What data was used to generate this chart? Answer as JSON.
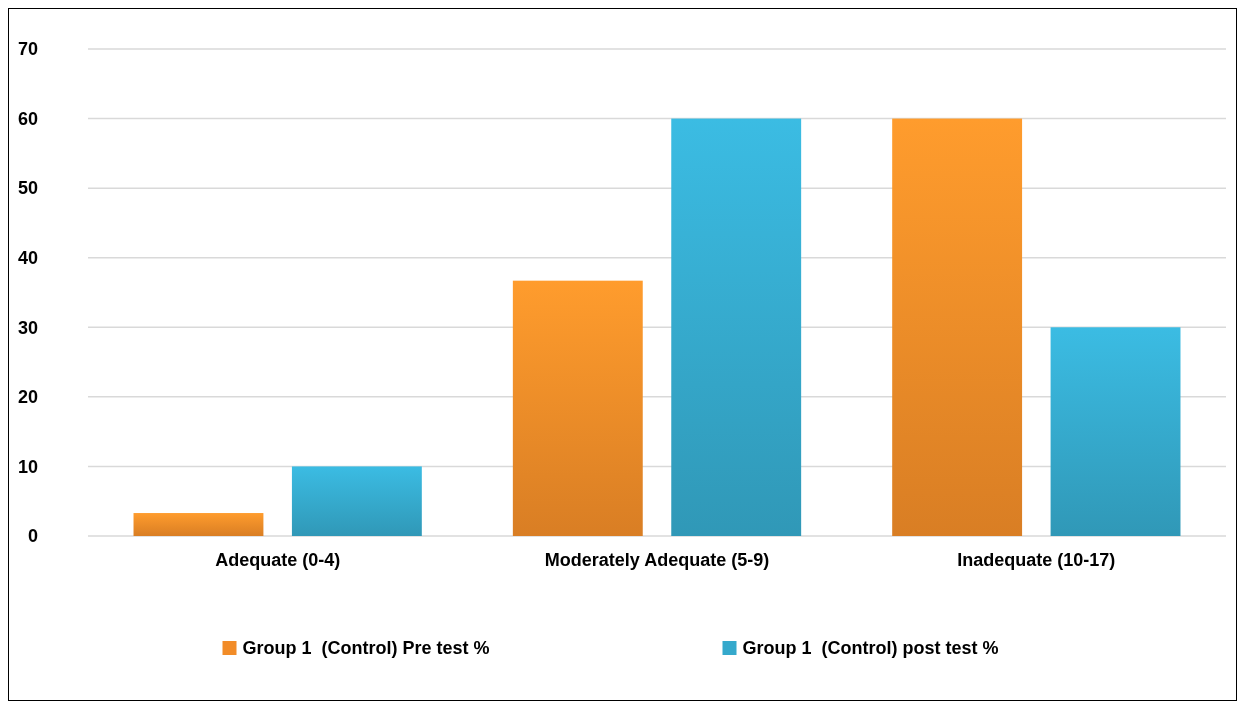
{
  "chart_data": {
    "type": "bar",
    "categories": [
      "Adequate (0-4)",
      "Moderately Adequate (5-9)",
      "Inadequate (10-17)"
    ],
    "series": [
      {
        "name": "Group 1  (Control) Pre test %",
        "color": "#f28c28",
        "values": [
          3.3,
          36.7,
          60
        ]
      },
      {
        "name": "Group 1  (Control) post test %",
        "color": "#35a9cc",
        "values": [
          10,
          60,
          30
        ]
      }
    ],
    "ylim": [
      0,
      70
    ],
    "yticks": [
      0,
      10,
      20,
      30,
      40,
      50,
      60,
      70
    ],
    "grid": "y",
    "legend": "bottom"
  }
}
